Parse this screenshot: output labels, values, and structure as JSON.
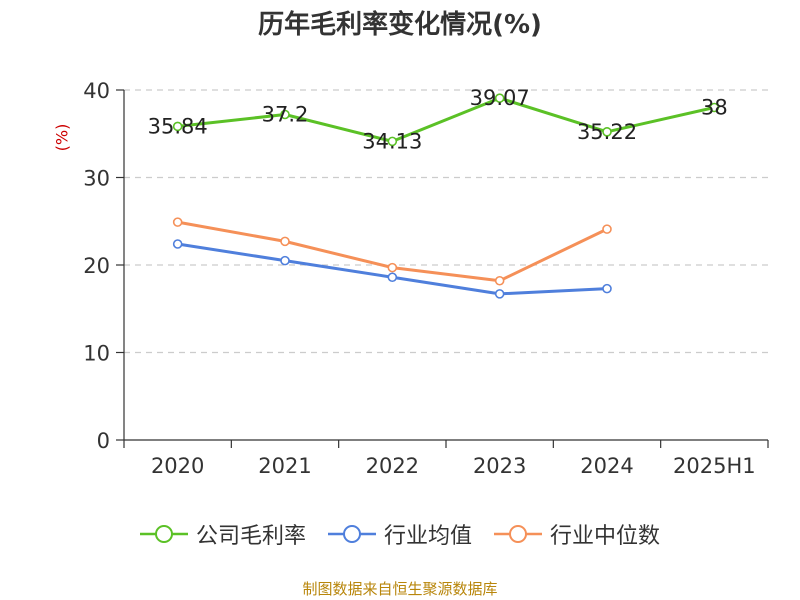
{
  "chart_data": {
    "type": "line",
    "title": "历年毛利率变化情况(%)",
    "ylabel": "(%)",
    "xlabel": "",
    "categories": [
      "2020",
      "2021",
      "2022",
      "2023",
      "2024",
      "2025H1"
    ],
    "ylim": [
      0,
      40
    ],
    "yticks": [
      "0",
      "10",
      "20",
      "30",
      "40"
    ],
    "grid": true,
    "legend_position": "bottom",
    "series": [
      {
        "name": "公司毛利率",
        "color": "#5bc126",
        "values": [
          35.84,
          37.2,
          34.13,
          39.07,
          35.22,
          38
        ],
        "labels": [
          "35.84",
          "37.2",
          "34.13",
          "39.07",
          "35.22",
          "38"
        ]
      },
      {
        "name": "行业均值",
        "color": "#4f7fdc",
        "values": [
          22.4,
          20.5,
          18.6,
          16.7,
          17.3,
          null
        ]
      },
      {
        "name": "行业中位数",
        "color": "#f59058",
        "values": [
          24.9,
          22.7,
          19.7,
          18.2,
          24.1,
          null
        ]
      }
    ]
  },
  "source": "制图数据来自恒生聚源数据库"
}
